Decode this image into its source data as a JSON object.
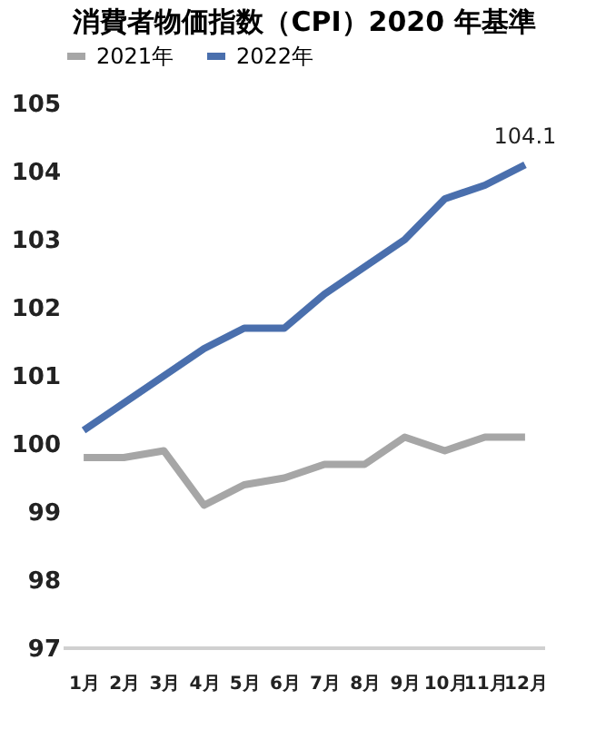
{
  "chart_data": {
    "type": "line",
    "title": "消費者物価指数（CPI）2020 年基準",
    "categories": [
      "1月",
      "2月",
      "3月",
      "4月",
      "5月",
      "6月",
      "7月",
      "8月",
      "9月",
      "10月",
      "11月",
      "12月"
    ],
    "series": [
      {
        "name": "2021年",
        "color": "#a6a6a6",
        "values": [
          99.8,
          99.8,
          99.9,
          99.1,
          99.4,
          99.5,
          99.7,
          99.7,
          100.1,
          99.9,
          100.1,
          100.1
        ]
      },
      {
        "name": "2022年",
        "color": "#4a6fad",
        "values": [
          100.2,
          100.6,
          101.0,
          101.4,
          101.7,
          101.7,
          102.2,
          102.6,
          103.0,
          103.6,
          103.8,
          104.1
        ]
      }
    ],
    "annotations": [
      {
        "text": "104.1",
        "x": "12月",
        "y": 104.1
      }
    ],
    "ylim": [
      97,
      105
    ],
    "yticks": [
      97,
      98,
      99,
      100,
      101,
      102,
      103,
      104,
      105
    ],
    "grid": false,
    "legend": "top",
    "marker": "none",
    "line_style": "solid"
  }
}
